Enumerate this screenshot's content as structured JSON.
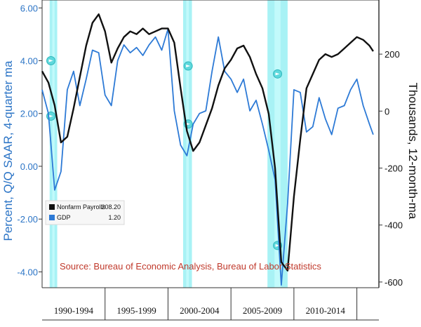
{
  "chart_data": {
    "type": "line",
    "ylabel_left": "Percent, Q/Q SAAR, 4-quarter ma",
    "ylabel_right": "Thousands, 12-month-ma",
    "yticks_left": [
      "6.00",
      "4.00",
      "2.00",
      "0.00",
      "-2.00",
      "-4.00"
    ],
    "yticks_right": [
      "200",
      "0",
      "-200",
      "-400",
      "-600"
    ],
    "ylim_left": [
      -4.6,
      6.3
    ],
    "ylim_right": [
      -620,
      390
    ],
    "xlim": [
      1990.0,
      2016.75
    ],
    "periods": [
      "1990-1994",
      "1995-1999",
      "2000-2004",
      "2005-2009",
      "2010-2014"
    ],
    "recessions": [
      [
        1990.6,
        1991.2
      ],
      [
        2001.2,
        2001.9
      ],
      [
        2007.9,
        2009.5
      ]
    ],
    "source": "Source: Bureau of Economic Analysis, Bureau of Labor Statistics",
    "grid": false,
    "legend_position": "lower-left",
    "series": [
      {
        "name": "Nonfarm Payrolls",
        "legend_value": "208.20",
        "axis": "right",
        "color": "#111111",
        "x": [
          1990.0,
          1990.5,
          1991.0,
          1991.5,
          1992.0,
          1992.5,
          1993.0,
          1993.5,
          1994.0,
          1994.5,
          1995.0,
          1995.5,
          1996.0,
          1996.5,
          1997.0,
          1997.5,
          1998.0,
          1998.5,
          1999.0,
          1999.5,
          2000.0,
          2000.5,
          2001.0,
          2001.5,
          2002.0,
          2002.5,
          2003.0,
          2003.5,
          2004.0,
          2004.5,
          2005.0,
          2005.5,
          2006.0,
          2006.5,
          2007.0,
          2007.5,
          2008.0,
          2008.5,
          2009.0,
          2009.5,
          2010.0,
          2010.5,
          2011.0,
          2011.5,
          2012.0,
          2012.5,
          2013.0,
          2013.5,
          2014.0,
          2014.5,
          2015.0,
          2015.5,
          2016.0,
          2016.3
        ],
        "values": [
          140,
          100,
          20,
          -110,
          -90,
          10,
          120,
          230,
          310,
          340,
          280,
          170,
          220,
          260,
          280,
          270,
          290,
          270,
          280,
          290,
          290,
          240,
          80,
          -70,
          -140,
          -110,
          -50,
          10,
          90,
          150,
          180,
          220,
          230,
          190,
          130,
          80,
          -10,
          -200,
          -530,
          -560,
          -300,
          -100,
          80,
          130,
          180,
          200,
          190,
          200,
          220,
          240,
          260,
          250,
          230,
          210
        ]
      },
      {
        "name": "GDP",
        "legend_value": "1.20",
        "axis": "left",
        "color": "#2d7ad6",
        "x": [
          1990.0,
          1990.5,
          1991.0,
          1991.5,
          1992.0,
          1992.5,
          1993.0,
          1993.5,
          1994.0,
          1994.5,
          1995.0,
          1995.5,
          1996.0,
          1996.5,
          1997.0,
          1997.5,
          1998.0,
          1998.5,
          1999.0,
          1999.5,
          2000.0,
          2000.5,
          2001.0,
          2001.5,
          2002.0,
          2002.5,
          2003.0,
          2003.5,
          2004.0,
          2004.5,
          2005.0,
          2005.5,
          2006.0,
          2006.5,
          2007.0,
          2007.5,
          2008.0,
          2008.5,
          2009.0,
          2009.5,
          2010.0,
          2010.5,
          2011.0,
          2011.5,
          2012.0,
          2012.5,
          2013.0,
          2013.5,
          2014.0,
          2014.5,
          2015.0,
          2015.5,
          2016.0,
          2016.3
        ],
        "values": [
          2.9,
          2.0,
          -0.9,
          -0.2,
          2.9,
          3.6,
          2.3,
          3.3,
          4.4,
          4.3,
          2.7,
          2.3,
          4.0,
          4.6,
          4.3,
          4.5,
          4.2,
          4.6,
          4.9,
          4.4,
          5.2,
          2.1,
          0.8,
          0.4,
          1.6,
          2.0,
          2.1,
          3.6,
          4.9,
          3.6,
          3.3,
          2.8,
          3.3,
          2.1,
          2.5,
          1.6,
          0.6,
          -0.5,
          -4.5,
          -1.4,
          2.9,
          2.8,
          1.3,
          1.5,
          2.6,
          1.8,
          1.2,
          2.2,
          2.3,
          2.9,
          3.3,
          2.3,
          1.6,
          1.2
        ]
      }
    ]
  }
}
